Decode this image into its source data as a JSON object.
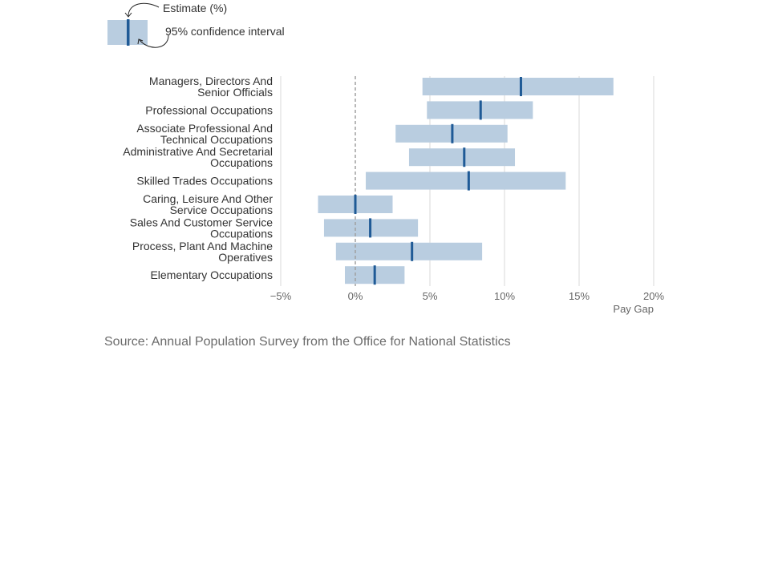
{
  "legend": {
    "estimate_label": "Estimate (%)",
    "ci_label": "95% confidence interval"
  },
  "source": "Source: Annual Population Survey from the Office for National Statistics",
  "colors": {
    "interval": "#b9cde0",
    "estimate": "#1f5a96",
    "grid": "#d9d9d9",
    "zero_line": "#a0a0a0"
  },
  "chart_data": {
    "type": "interval",
    "xlabel": "Pay Gap",
    "xlim": [
      -5,
      20
    ],
    "xticks": [
      -5,
      0,
      5,
      10,
      15,
      20
    ],
    "xtick_labels": [
      "−5%",
      "0%",
      "5%",
      "10%",
      "15%",
      "20%"
    ],
    "grid": true,
    "series": [
      {
        "category": [
          "Managers, Directors And",
          "Senior Officials"
        ],
        "estimate": 11.1,
        "low": 4.5,
        "high": 17.3
      },
      {
        "category": [
          "Professional Occupations"
        ],
        "estimate": 8.4,
        "low": 4.8,
        "high": 11.9
      },
      {
        "category": [
          "Associate Professional And",
          "Technical Occupations"
        ],
        "estimate": 6.5,
        "low": 2.7,
        "high": 10.2
      },
      {
        "category": [
          "Administrative And Secretarial",
          "Occupations"
        ],
        "estimate": 7.3,
        "low": 3.6,
        "high": 10.7
      },
      {
        "category": [
          "Skilled Trades Occupations"
        ],
        "estimate": 7.6,
        "low": 0.7,
        "high": 14.1
      },
      {
        "category": [
          "Caring, Leisure And Other",
          "Service Occupations"
        ],
        "estimate": 0.0,
        "low": -2.5,
        "high": 2.5
      },
      {
        "category": [
          "Sales And Customer Service",
          "Occupations"
        ],
        "estimate": 1.0,
        "low": -2.1,
        "high": 4.2
      },
      {
        "category": [
          "Process, Plant And Machine",
          "Operatives"
        ],
        "estimate": 3.8,
        "low": -1.3,
        "high": 8.5
      },
      {
        "category": [
          "Elementary Occupations"
        ],
        "estimate": 1.3,
        "low": -0.7,
        "high": 3.3
      }
    ]
  }
}
